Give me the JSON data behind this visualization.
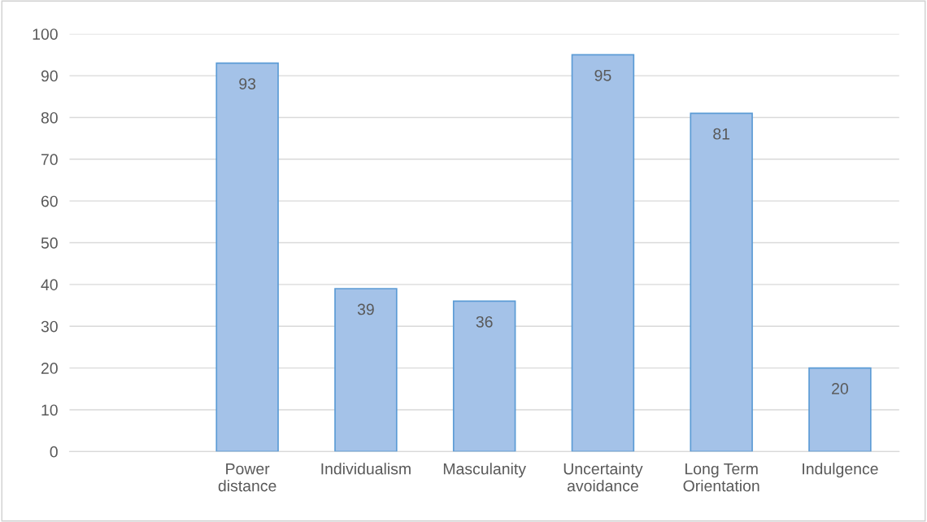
{
  "chart_data": {
    "type": "bar",
    "categories": [
      null,
      "Power\ndistance",
      "Individualism",
      "Masculanity",
      "Uncertainty\navoidance",
      "Long Term\nOrientation",
      "Indulgence"
    ],
    "values": [
      null,
      93,
      39,
      36,
      95,
      81,
      20
    ],
    "color": "#a4c2e8",
    "ylim": [
      0,
      100
    ],
    "yticks": [
      0,
      10,
      20,
      30,
      40,
      50,
      60,
      70,
      80,
      90,
      100
    ],
    "grid": "y",
    "data_labels": true
  }
}
